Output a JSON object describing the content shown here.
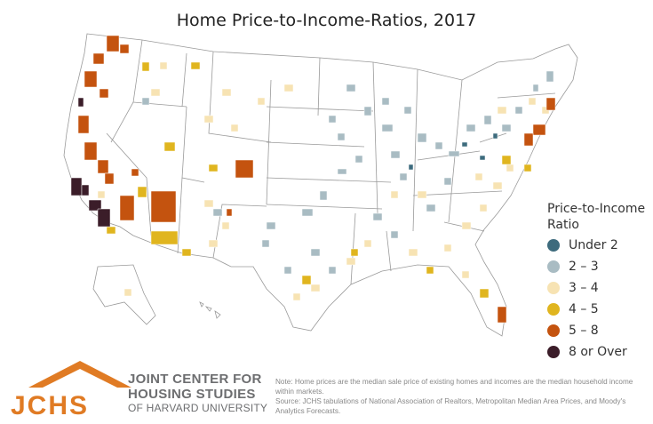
{
  "title": "Home Price-to-Income-Ratios, 2017",
  "legend": {
    "title": "Price-to-Income Ratio",
    "items": [
      {
        "label": "Under 2",
        "color": "#3d6b7d"
      },
      {
        "label": "2 – 3",
        "color": "#a9bcc3"
      },
      {
        "label": "3 – 4",
        "color": "#f7e3b3"
      },
      {
        "label": "4 – 5",
        "color": "#e0b51f"
      },
      {
        "label": "5 – 8",
        "color": "#c4530f"
      },
      {
        "label": "8 or Over",
        "color": "#3b1d29"
      }
    ]
  },
  "logo": {
    "acronym": "JCHS",
    "line1": "JOINT CENTER FOR",
    "line2": "HOUSING STUDIES",
    "line3": "OF HARVARD UNIVERSITY",
    "brand_color": "#e07b24",
    "text_color": "#6d6e70"
  },
  "note": "Note: Home prices are the median sale price of existing homes and incomes are the median household income within markets.",
  "source": "Source: JCHS tabulations of National Association of Realtors, Metropolitan Median Area Prices, and Moody's Analytics Forecasts."
}
